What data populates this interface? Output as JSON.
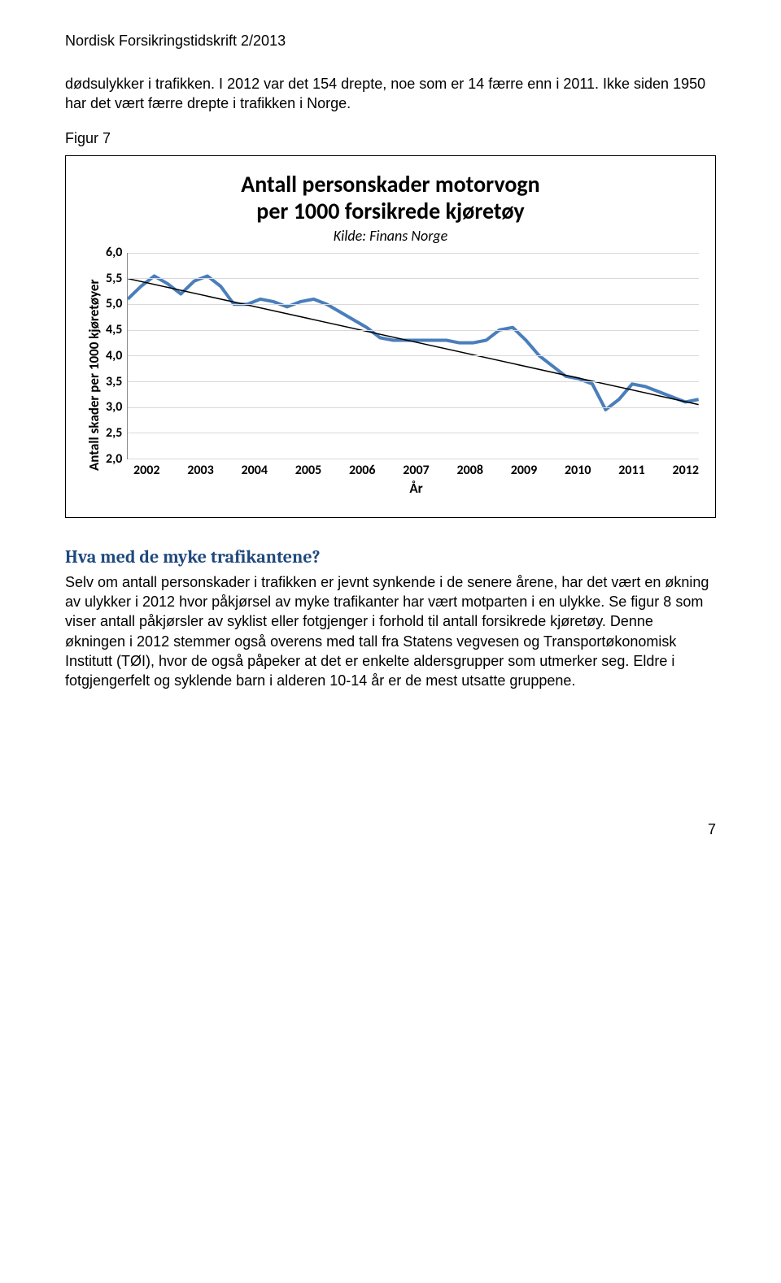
{
  "header": "Nordisk Forsikringstidskrift 2/2013",
  "intro_para": "dødsulykker i trafikken. I 2012 var det 154 drepte, noe som er 14 færre enn i 2011. Ikke siden 1950 har det vært færre drepte i trafikken i Norge.",
  "figure_label": "Figur 7",
  "chart": {
    "type": "line",
    "title_line1": "Antall personskader motorvogn",
    "title_line2": "per 1000 forsikrede kjøretøy",
    "subtitle": "Kilde: Finans  Norge",
    "y_label": "Antall skader per 1000 kjøretøyer",
    "x_label": "År",
    "title_fontsize": 28,
    "label_fontsize": 17,
    "tick_fontsize": 16,
    "ylim": [
      2.0,
      6.0
    ],
    "ytick_step": 0.5,
    "y_ticks": [
      "6,0",
      "5,5",
      "5,0",
      "4,5",
      "4,0",
      "3,5",
      "3,0",
      "2,5",
      "2,0"
    ],
    "x_ticks": [
      "2002",
      "2003",
      "2004",
      "2005",
      "2006",
      "2007",
      "2008",
      "2009",
      "2010",
      "2011",
      "2012"
    ],
    "line_color": "#4a7ebb",
    "line_width": 4,
    "trend_color": "#000000",
    "trend_width": 1.5,
    "grid_color": "#d9d9d9",
    "background_color": "#ffffff",
    "data_points": [
      5.1,
      5.35,
      5.55,
      5.4,
      5.2,
      5.45,
      5.55,
      5.35,
      5.0,
      5.0,
      5.1,
      5.05,
      4.95,
      5.05,
      5.1,
      5.0,
      4.85,
      4.7,
      4.55,
      4.35,
      4.3,
      4.3,
      4.3,
      4.3,
      4.3,
      4.25,
      4.25,
      4.3,
      4.5,
      4.55,
      4.3,
      4.0,
      3.8,
      3.6,
      3.55,
      3.45,
      2.95,
      3.15,
      3.45,
      3.4,
      3.3,
      3.2,
      3.1,
      3.15
    ],
    "trend_start": 5.5,
    "trend_end": 3.05
  },
  "section": {
    "heading": "Hva med de myke trafikantene?",
    "heading_color": "#1f497d",
    "body": "Selv om antall personskader i trafikken er jevnt synkende i de senere årene, har det vært en økning av ulykker i 2012 hvor påkjørsel av myke trafikanter har vært motparten i en ulykke. Se figur 8 som viser antall påkjørsler av syklist eller fotgjenger i forhold til antall forsikrede kjøretøy. Denne økningen i 2012 stemmer også overens med tall fra Statens vegvesen og Transportøkonomisk Institutt (TØI), hvor de også påpeker at det er enkelte aldersgrupper som utmerker seg. Eldre i fotgjengerfelt og syklende barn i alderen 10-14 år er de mest utsatte gruppene."
  },
  "page_number": "7"
}
